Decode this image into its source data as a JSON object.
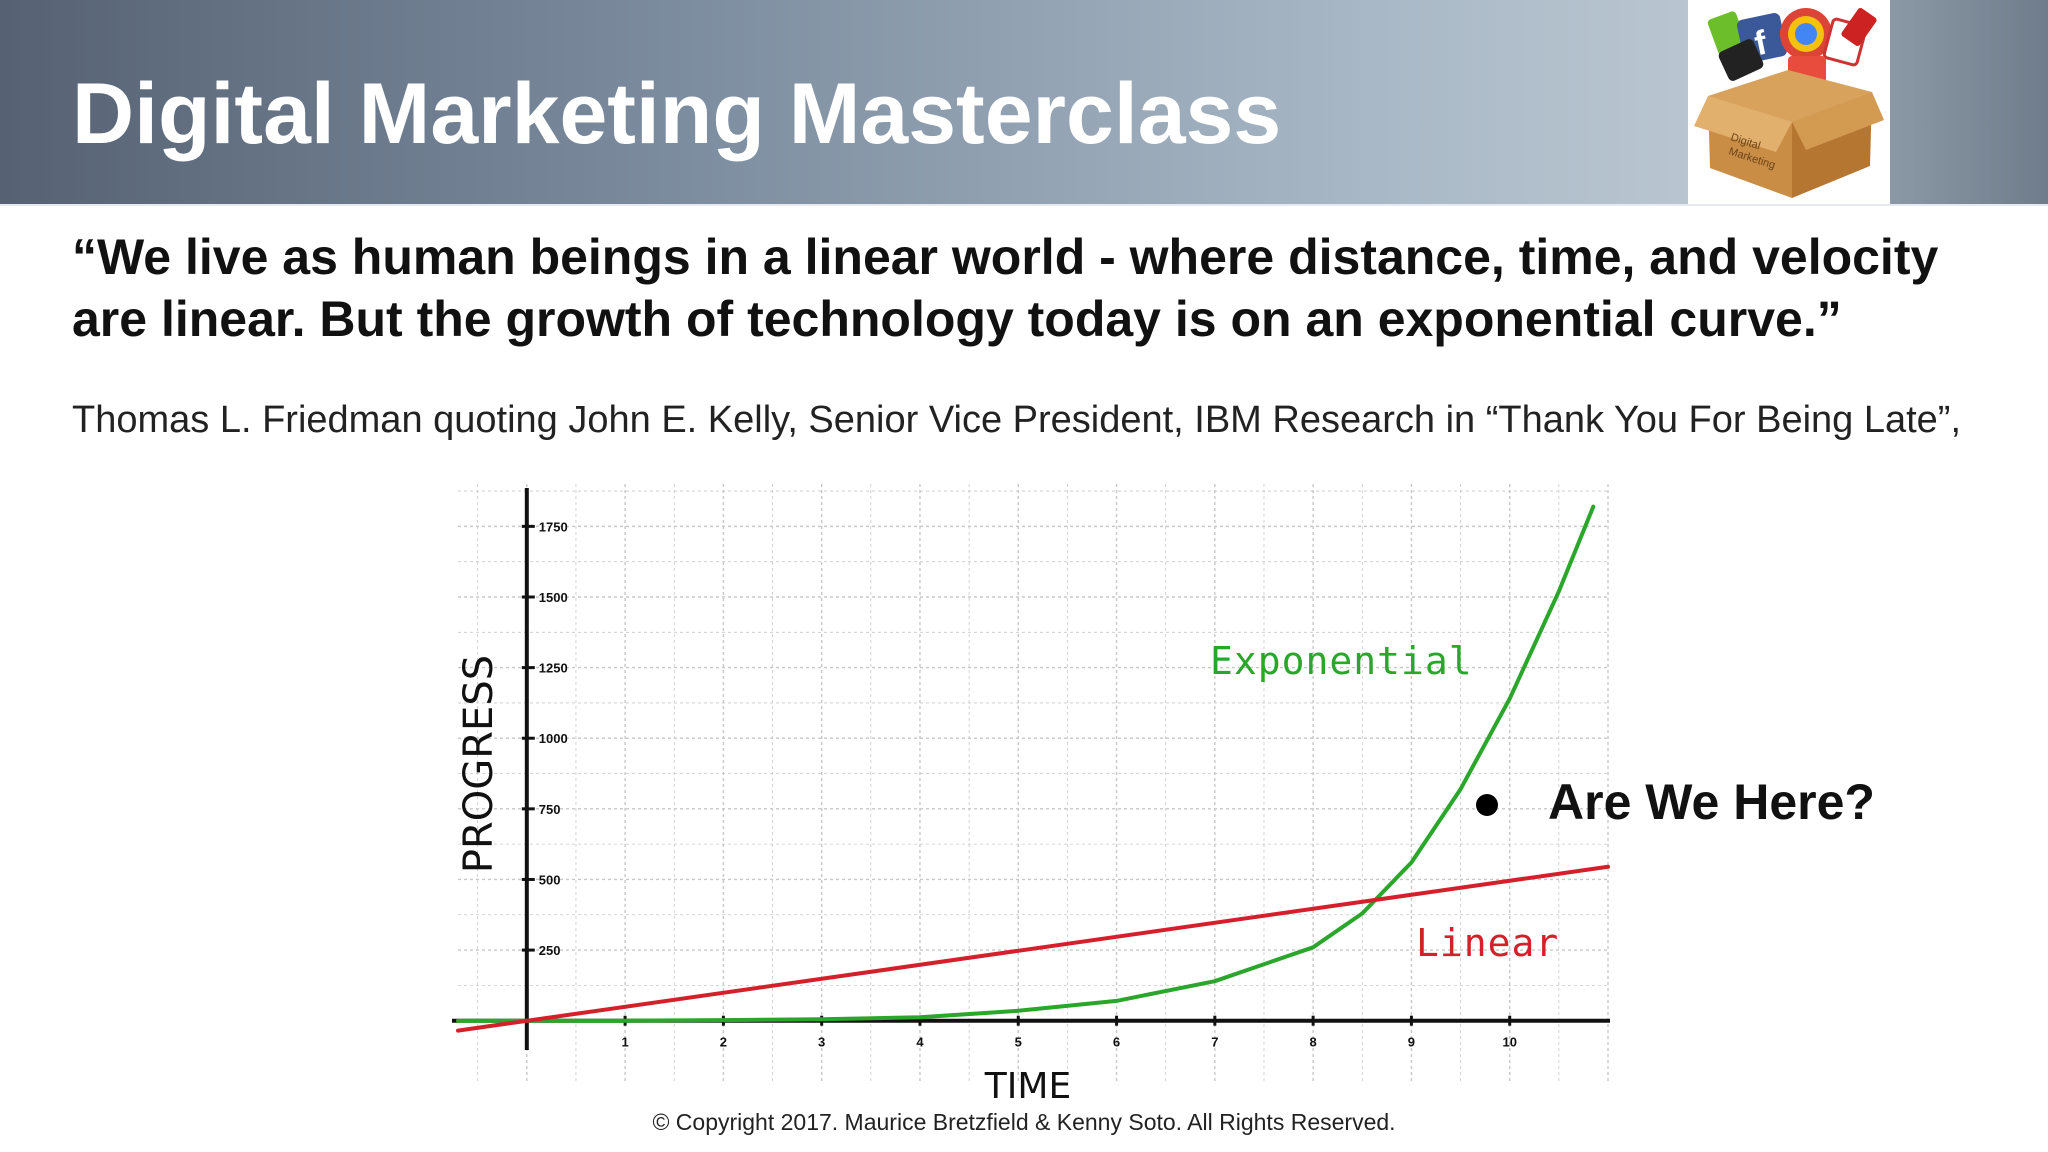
{
  "header": {
    "title": "Digital Marketing Masterclass"
  },
  "logo": {
    "text": "Digital Marketing Masterclass box logo",
    "icons": [
      "twitter-icon",
      "facebook-icon",
      "chrome-icon",
      "mail-icon",
      "youtube-icon"
    ]
  },
  "quote": "“We live as human beings in a linear world - where distance, time, and velocity are linear. But the growth of technology today is on an exponential curve.”",
  "attribution": "Thomas L. Friedman quoting John E. Kelly, Senior Vice President, IBM Research in “Thank You For Being Late”,",
  "annotation": {
    "label": "Are We Here?"
  },
  "copyright": "© Copyright 2017. Maurice Bretzfield & Kenny Soto. All Rights Reserved.",
  "colors": {
    "exponential": "#2aa62a",
    "linear": "#d4202a",
    "axis": "#111111",
    "grid": "#c8c8c8"
  },
  "chart_data": {
    "type": "line",
    "xlabel": "TIME",
    "ylabel": "PROGRESS",
    "xlim": [
      -0.7,
      11.0
    ],
    "ylim": [
      -40,
      1900
    ],
    "x_ticks": [
      1,
      2,
      3,
      4,
      5,
      6,
      7,
      8,
      9,
      10
    ],
    "y_ticks": [
      250,
      500,
      750,
      1000,
      1250,
      1500,
      1750
    ],
    "grid": true,
    "series": [
      {
        "name": "Exponential",
        "x": [
          -0.7,
          0,
          1,
          2,
          3,
          4,
          5,
          6,
          7,
          8,
          8.5,
          9,
          9.5,
          10,
          10.5,
          10.85
        ],
        "y": [
          0,
          0,
          0,
          2,
          5,
          12,
          35,
          70,
          140,
          260,
          380,
          560,
          820,
          1140,
          1520,
          1820
        ]
      },
      {
        "name": "Linear",
        "x": [
          -0.7,
          0,
          11.0
        ],
        "y": [
          -35,
          0,
          545
        ]
      }
    ],
    "annotation_point": {
      "x": 9.65,
      "y": 800,
      "text": "Are We Here?"
    }
  }
}
